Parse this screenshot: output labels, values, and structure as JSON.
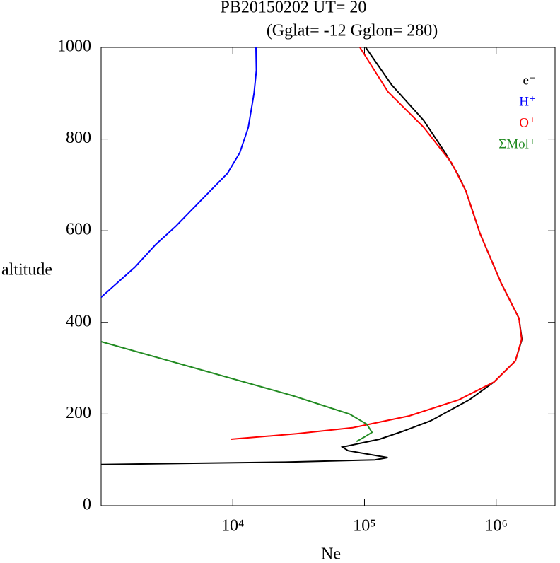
{
  "chart_data": {
    "type": "line",
    "title": "PB20150202   UT=  20",
    "subtitle": "(Gglat= -12   Gglon=  280)",
    "x_label": "Ne",
    "y_label": "altitude",
    "xscale": "log",
    "xlim": [
      1000,
      2800000
    ],
    "ylim": [
      0,
      1000
    ],
    "xticks": [
      {
        "value": 10000,
        "label": "10⁴"
      },
      {
        "value": 100000,
        "label": "10⁵"
      },
      {
        "value": 1000000,
        "label": "10⁶"
      }
    ],
    "yticks": [
      0,
      200,
      400,
      600,
      800,
      1000
    ],
    "legend": "top right",
    "grid": false,
    "series": [
      {
        "name": "e⁻",
        "color": "#000000",
        "x": [
          102000,
          161000,
          281000,
          406000,
          507000,
          588000,
          754000,
          1090000,
          1490000,
          1570000,
          1400000,
          965000,
          625000,
          317000,
          194000,
          130000,
          68000,
          75000,
          150000,
          120000,
          25000,
          1000
        ],
        "values": [
          1000,
          918,
          841,
          772,
          725,
          687,
          594,
          486,
          409,
          363,
          316,
          270,
          231,
          185,
          162,
          145,
          128,
          120,
          105,
          100,
          95,
          90
        ]
      },
      {
        "name": "H⁺",
        "color": "#0000ff",
        "x": [
          15000,
          15100,
          14500,
          13100,
          11300,
          9100,
          6900,
          3700,
          2600,
          1800,
          1000
        ],
        "values": [
          1000,
          950,
          900,
          825,
          770,
          725,
          690,
          610,
          570,
          520,
          455
        ]
      },
      {
        "name": "O⁺",
        "color": "#ff0000",
        "x": [
          92300,
          151000,
          281000,
          459000,
          588000,
          754000,
          1090000,
          1490000,
          1560000,
          1400000,
          965000,
          520000,
          219000,
          81000,
          30400,
          9650
        ],
        "values": [
          1000,
          903,
          826,
          748,
          687,
          594,
          486,
          409,
          363,
          316,
          270,
          231,
          196,
          170,
          157,
          145
        ]
      },
      {
        "name": "ΣMol⁺",
        "color": "#228b22",
        "x": [
          1000,
          28600,
          77000,
          104000,
          114000,
          100000,
          87000
        ],
        "values": [
          358,
          240,
          200,
          178,
          160,
          150,
          140
        ]
      }
    ]
  }
}
